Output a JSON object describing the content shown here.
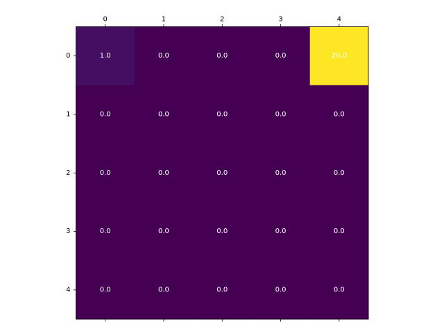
{
  "chart_data": {
    "type": "heatmap",
    "title": "",
    "xlabel": "",
    "ylabel": "",
    "x_categories": [
      "0",
      "1",
      "2",
      "3",
      "4"
    ],
    "y_categories": [
      "0",
      "1",
      "2",
      "3",
      "4"
    ],
    "x_tick_position": "top-and-bottom",
    "colormap": "viridis",
    "value_range": [
      0,
      20
    ],
    "values": [
      [
        1.0,
        0.0,
        0.0,
        0.0,
        20.0
      ],
      [
        0.0,
        0.0,
        0.0,
        0.0,
        0.0
      ],
      [
        0.0,
        0.0,
        0.0,
        0.0,
        0.0
      ],
      [
        0.0,
        0.0,
        0.0,
        0.0,
        0.0
      ],
      [
        0.0,
        0.0,
        0.0,
        0.0,
        0.0
      ]
    ],
    "cell_labels": [
      [
        "1.0",
        "0.0",
        "0.0",
        "0.0",
        "20.0"
      ],
      [
        "0.0",
        "0.0",
        "0.0",
        "0.0",
        "0.0"
      ],
      [
        "0.0",
        "0.0",
        "0.0",
        "0.0",
        "0.0"
      ],
      [
        "0.0",
        "0.0",
        "0.0",
        "0.0",
        "0.0"
      ],
      [
        "0.0",
        "0.0",
        "0.0",
        "0.0",
        "0.0"
      ]
    ],
    "colors": {
      "low": "#440154",
      "high": "#fde725",
      "annotation": "#ffffff"
    },
    "grid": false,
    "legend": "none"
  }
}
